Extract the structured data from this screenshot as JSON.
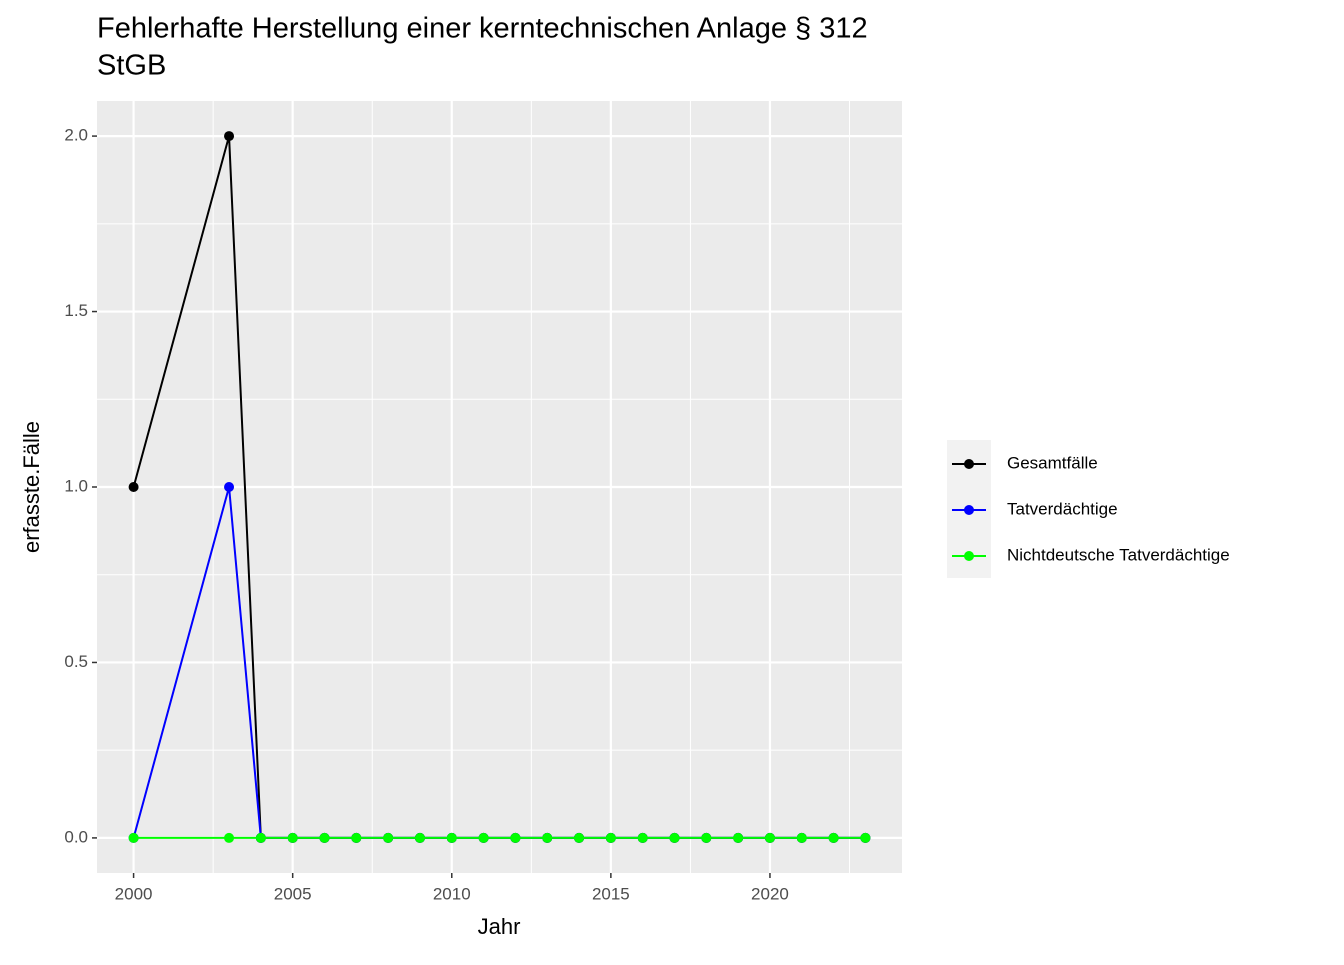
{
  "chart_data": {
    "type": "line",
    "title": [
      "Fehlerhafte Herstellung einer kerntechnischen Anlage § 312",
      "StGB"
    ],
    "x_label": "Jahr",
    "y_label": "erfasste.Fälle",
    "x": [
      2000,
      2003,
      2004,
      2005,
      2006,
      2007,
      2008,
      2009,
      2010,
      2011,
      2012,
      2013,
      2014,
      2015,
      2016,
      2017,
      2018,
      2019,
      2020,
      2021,
      2022,
      2023
    ],
    "series": [
      {
        "name": "Gesamtfälle",
        "color": "#000000",
        "values": [
          1,
          2,
          0,
          0,
          0,
          0,
          0,
          0,
          0,
          0,
          0,
          0,
          0,
          0,
          0,
          0,
          0,
          0,
          0,
          0,
          0,
          0
        ]
      },
      {
        "name": "Tatverdächtige",
        "color": "#0000ff",
        "values": [
          0,
          1,
          0,
          0,
          0,
          0,
          0,
          0,
          0,
          0,
          0,
          0,
          0,
          0,
          0,
          0,
          0,
          0,
          0,
          0,
          0,
          0
        ]
      },
      {
        "name": "Nichtdeutsche Tatverdächtige",
        "color": "#00ff00",
        "values": [
          0,
          0,
          0,
          0,
          0,
          0,
          0,
          0,
          0,
          0,
          0,
          0,
          0,
          0,
          0,
          0,
          0,
          0,
          0,
          0,
          0,
          0
        ]
      }
    ],
    "xlim": [
      1998.85,
      2024.15
    ],
    "xticks": [
      2000,
      2005,
      2010,
      2015,
      2020
    ],
    "ylim": [
      -0.1,
      2.1
    ],
    "yticks": [
      {
        "value": 0,
        "label": "0.0"
      },
      {
        "value": 0.5,
        "label": "0.5"
      },
      {
        "value": 1,
        "label": "1.0"
      },
      {
        "value": 1.5,
        "label": "1.5"
      },
      {
        "value": 2,
        "label": "2.0"
      }
    ],
    "grid": true,
    "legend_position": "right"
  }
}
